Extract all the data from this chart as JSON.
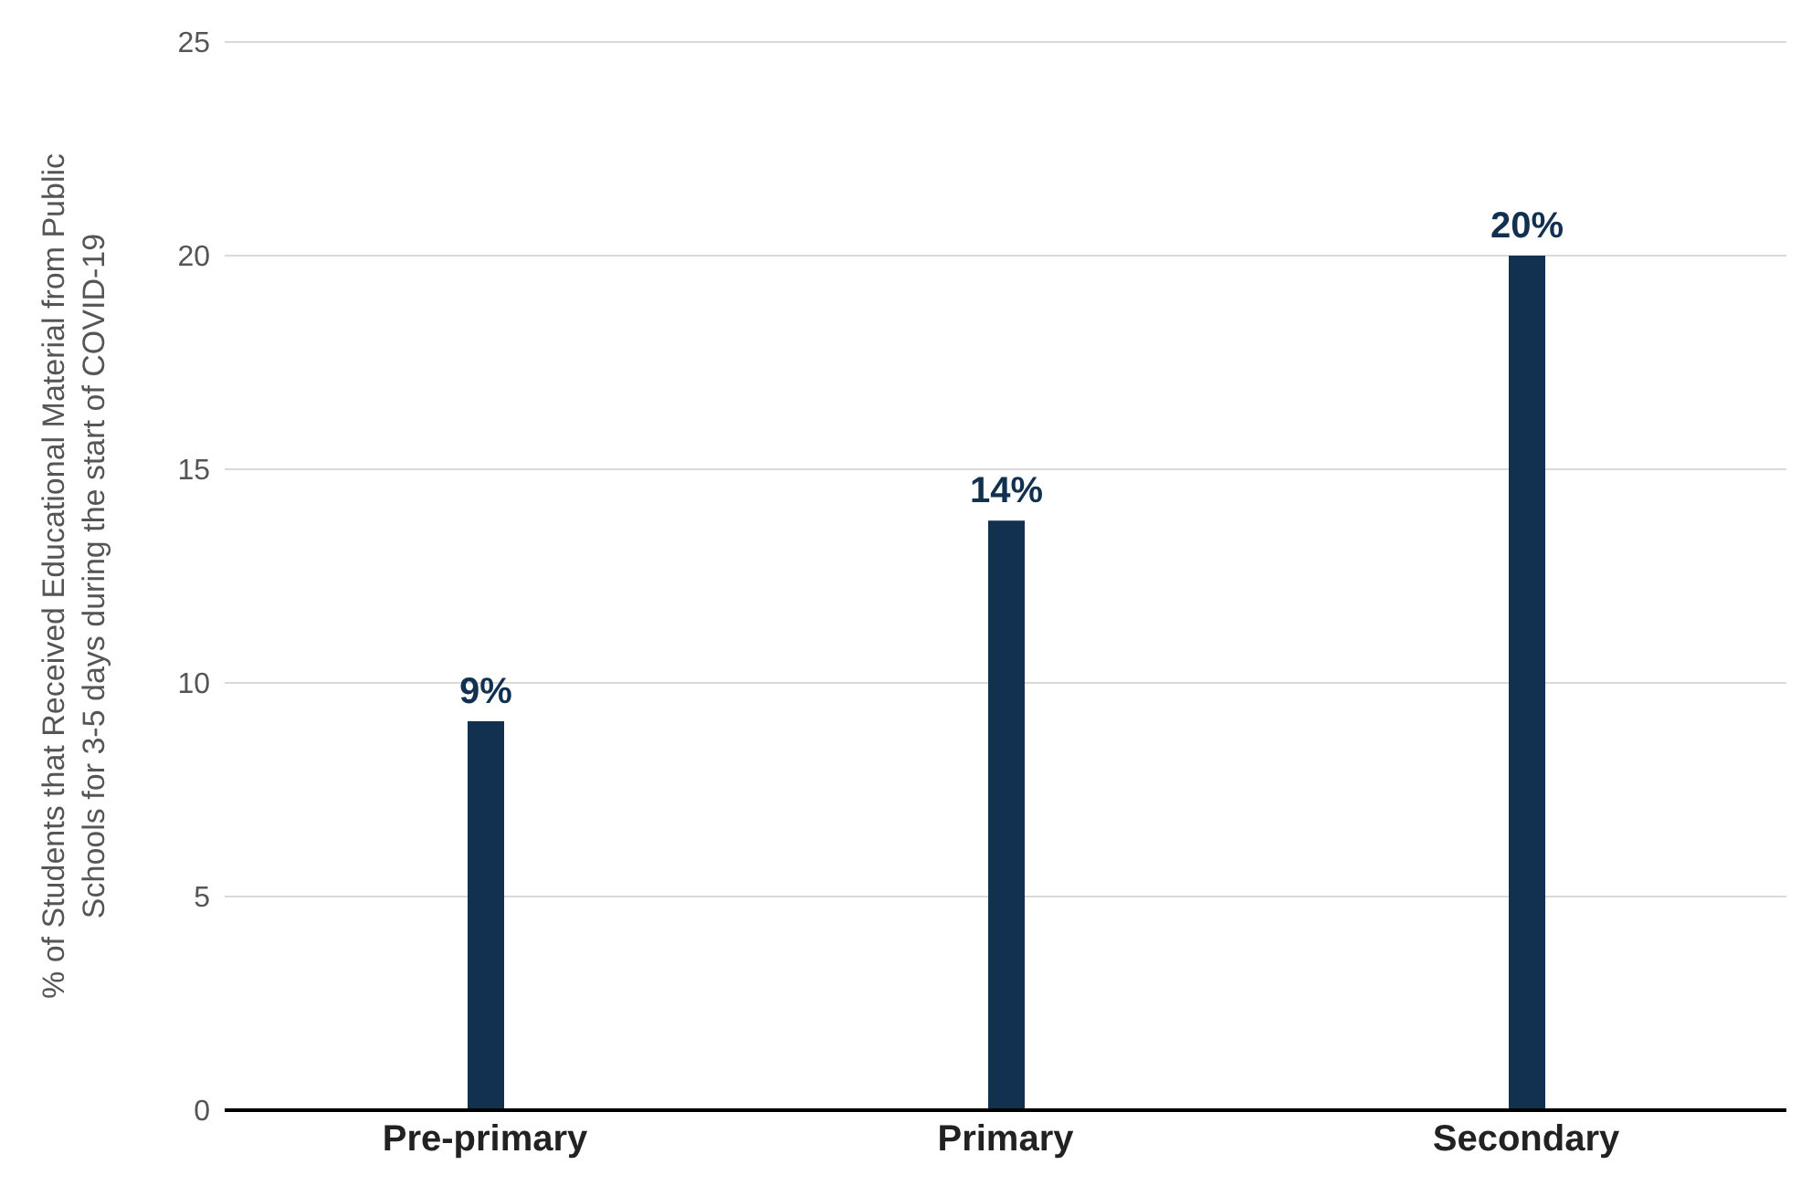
{
  "chart_data": {
    "type": "bar",
    "ylabel": "% of Students that Received Educational Material from Public Schools for 3-5 days during the start of COVID-19",
    "categories": [
      "Pre-primary",
      "Primary",
      "Secondary"
    ],
    "values": [
      9.1,
      13.8,
      20
    ],
    "value_labels": [
      "9%",
      "14%",
      "20%"
    ],
    "color": "#12304f",
    "ylim": [
      0,
      25
    ],
    "yticks": [
      0,
      5,
      10,
      15,
      20,
      25
    ],
    "grid": "y"
  }
}
